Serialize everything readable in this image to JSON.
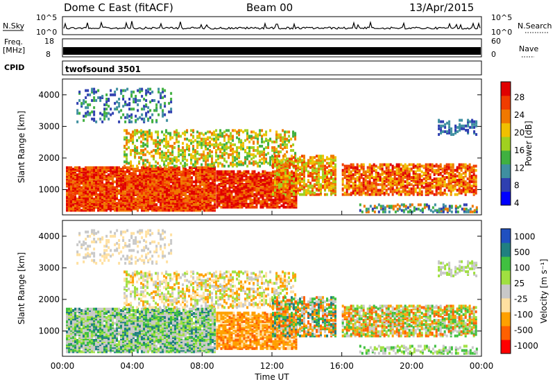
{
  "header": {
    "station": "Dome C East (fitACF)",
    "beam": "Beam 00",
    "date": "13/Apr/2015"
  },
  "strip_labels": {
    "nsky": "N.Sky",
    "nsky_ticks": [
      "10^5",
      "10^0"
    ],
    "nsearch": "N.Search",
    "nsearch_ticks": [
      "10^5",
      "10^0"
    ],
    "freq_line1": "Freq.",
    "freq_line2": "[MHz]",
    "freq_ticks": [
      "18",
      "8"
    ],
    "nave": "Nave",
    "nave_ticks": [
      "60",
      "0"
    ],
    "cpid": "CPID",
    "cpid_value": "twofsound 3501"
  },
  "colors": {
    "power": [
      "#0000ff",
      "#2f3fb0",
      "#3f8fa0",
      "#40b040",
      "#a0d020",
      "#f0c000",
      "#f07800",
      "#f03c00",
      "#e00000"
    ],
    "velocity": [
      "#ff0000",
      "#ff6000",
      "#ffa000",
      "#ffe0a0",
      "#c8c8c8",
      "#a0e040",
      "#40c040",
      "#208080",
      "#2050c0"
    ]
  },
  "chart_data": [
    {
      "type": "heatmap",
      "title": "",
      "xlabel": "",
      "ylabel": "Slant Range [km]",
      "ylim": [
        200,
        4500
      ],
      "y_ticks": [
        "4000",
        "3000",
        "2000",
        "1000"
      ],
      "x_ticks": [
        "00:00",
        "04:00",
        "08:00",
        "12:00",
        "16:00",
        "20:00",
        "00:00"
      ],
      "colorbar_label": "Power [dB]",
      "colorbar_ticks": [
        "28",
        "24",
        "20",
        "16",
        "12",
        "8",
        "4"
      ],
      "colorbar_range": [
        0,
        32
      ]
    },
    {
      "type": "heatmap",
      "title": "",
      "xlabel": "Time UT",
      "ylabel": "Slant Range [km]",
      "ylim": [
        200,
        4500
      ],
      "y_ticks": [
        "4000",
        "3000",
        "2000",
        "1000"
      ],
      "x_ticks": [
        "00:00",
        "04:00",
        "08:00",
        "12:00",
        "16:00",
        "20:00",
        "00:00"
      ],
      "colorbar_label": "Velocity [m s⁻¹]",
      "colorbar_ticks": [
        "1000",
        "500",
        "100",
        "25",
        "-25",
        "-100",
        "-500",
        "-1000"
      ]
    }
  ]
}
